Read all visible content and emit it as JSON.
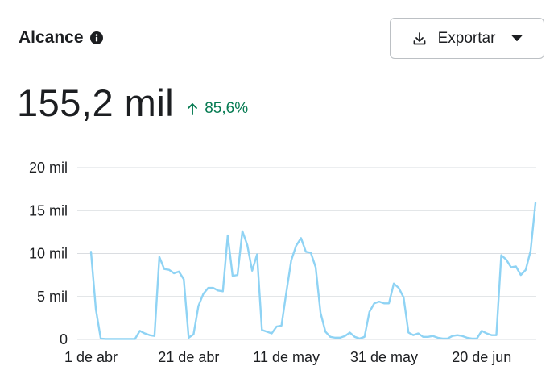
{
  "header": {
    "title": "Alcance",
    "info_icon": "info-icon"
  },
  "toolbar": {
    "export_label": "Exportar",
    "export_icon": "download-icon",
    "caret_icon": "caret-down-icon"
  },
  "metric": {
    "value": "155,2 mil",
    "delta": "85,6%",
    "delta_direction": "up",
    "delta_color": "#067b52"
  },
  "colors": {
    "line": "#8fd3f4",
    "grid": "#dadde1",
    "text": "#1c1e21"
  },
  "chart_data": {
    "type": "line",
    "title": "",
    "xlabel": "",
    "ylabel": "",
    "ylim": [
      0,
      20000
    ],
    "yticks": [
      {
        "v": 0,
        "label": "0"
      },
      {
        "v": 5000,
        "label": "5 mil"
      },
      {
        "v": 10000,
        "label": "10 mil"
      },
      {
        "v": 15000,
        "label": "15 mil"
      },
      {
        "v": 20000,
        "label": "20 mil"
      }
    ],
    "xticks": [
      {
        "i": 0,
        "label": "1 de abr"
      },
      {
        "i": 20,
        "label": "21 de abr"
      },
      {
        "i": 40,
        "label": "11 de may"
      },
      {
        "i": 60,
        "label": "31 de may"
      },
      {
        "i": 80,
        "label": "20 de jun"
      }
    ],
    "grid": true,
    "series": [
      {
        "values": [
          10200,
          3500,
          100,
          50,
          50,
          50,
          50,
          50,
          50,
          50,
          1000,
          700,
          500,
          400,
          9600,
          8200,
          8100,
          7700,
          7900,
          7000,
          200,
          600,
          3900,
          5300,
          6000,
          6000,
          5700,
          5600,
          12100,
          7400,
          7500,
          12600,
          11000,
          8000,
          9900,
          1100,
          900,
          700,
          1500,
          1600,
          5500,
          9200,
          10900,
          11800,
          10200,
          10100,
          8400,
          3100,
          900,
          300,
          200,
          200,
          400,
          800,
          300,
          100,
          300,
          3200,
          4200,
          4400,
          4200,
          4200,
          6500,
          6000,
          4900,
          800,
          500,
          700,
          300,
          300,
          400,
          200,
          100,
          100,
          400,
          500,
          400,
          200,
          100,
          100,
          1000,
          700,
          500,
          500,
          9800,
          9300,
          8400,
          8500,
          7500,
          8100,
          10300,
          15900
        ]
      }
    ]
  }
}
